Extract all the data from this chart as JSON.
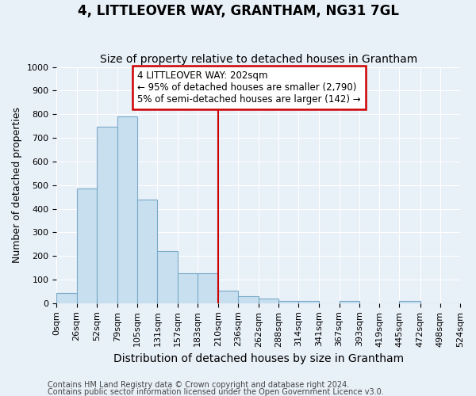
{
  "title": "4, LITTLEOVER WAY, GRANTHAM, NG31 7GL",
  "subtitle": "Size of property relative to detached houses in Grantham",
  "xlabel": "Distribution of detached houses by size in Grantham",
  "ylabel": "Number of detached properties",
  "bar_color": "#c8dff0",
  "bar_edge_color": "#7aaac8",
  "background_color": "#e8f0f8",
  "grid_color": "#ffffff",
  "vline_x": 210,
  "vline_color": "#cc0000",
  "bin_edges": [
    0,
    26,
    52,
    79,
    105,
    131,
    157,
    183,
    210,
    236,
    262,
    288,
    314,
    341,
    367,
    393,
    419,
    445,
    472,
    498,
    524
  ],
  "bar_heights": [
    42,
    485,
    748,
    790,
    438,
    220,
    128,
    128,
    52,
    30,
    18,
    10,
    8,
    0,
    8,
    0,
    0,
    8,
    0,
    0
  ],
  "xlim": [
    0,
    524
  ],
  "ylim": [
    0,
    1000
  ],
  "annotation_title": "4 LITTLEOVER WAY: 202sqm",
  "annotation_line1": "← 95% of detached houses are smaller (2,790)",
  "annotation_line2": "5% of semi-detached houses are larger (142) →",
  "annotation_box_color": "#ffffff",
  "annotation_edge_color": "#cc0000",
  "footnote1": "Contains HM Land Registry data © Crown copyright and database right 2024.",
  "footnote2": "Contains public sector information licensed under the Open Government Licence v3.0.",
  "yticks": [
    0,
    100,
    200,
    300,
    400,
    500,
    600,
    700,
    800,
    900,
    1000
  ],
  "title_fontsize": 12,
  "subtitle_fontsize": 10,
  "xlabel_fontsize": 10,
  "ylabel_fontsize": 9,
  "tick_fontsize": 8,
  "annot_fontsize": 8.5,
  "footnote_fontsize": 7
}
